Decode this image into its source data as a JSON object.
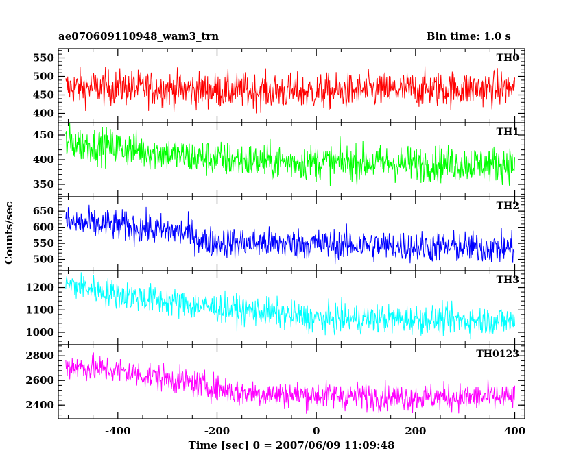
{
  "chart_data": {
    "type": "line",
    "title_left": "ae070609110948_wam3_trn",
    "title_right": "Bin time: 1.0 s",
    "xlabel": "Time [sec] 0 = 2007/06/09 11:09:48",
    "ylabel": "Counts/sec",
    "xlim": [
      -520,
      420
    ],
    "x_ticks": [
      -400,
      -200,
      0,
      200,
      400
    ],
    "x_data_range": [
      -505,
      400
    ],
    "bin_time_s": 1.0,
    "panels": [
      {
        "name": "TH0",
        "color": "#ff0000",
        "ylim": [
          375,
          575
        ],
        "y_ticks": [
          400,
          450,
          500,
          550
        ],
        "trend": [
          [
            -505,
            470
          ],
          [
            -400,
            470
          ],
          [
            -200,
            462
          ],
          [
            0,
            458
          ],
          [
            200,
            465
          ],
          [
            400,
            468
          ]
        ],
        "noise": 24
      },
      {
        "name": "TH1",
        "color": "#00ff00",
        "ylim": [
          325,
          475
        ],
        "y_ticks": [
          350,
          400,
          450
        ],
        "trend": [
          [
            -505,
            435
          ],
          [
            -400,
            425
          ],
          [
            -250,
            405
          ],
          [
            -100,
            395
          ],
          [
            0,
            395
          ],
          [
            200,
            392
          ],
          [
            400,
            392
          ]
        ],
        "noise": 18
      },
      {
        "name": "TH2",
        "color": "#0000ff",
        "ylim": [
          465,
          695
        ],
        "y_ticks": [
          500,
          550,
          600,
          650
        ],
        "trend": [
          [
            -505,
            615
          ],
          [
            -400,
            605
          ],
          [
            -250,
            580
          ],
          [
            -230,
            555
          ],
          [
            -100,
            550
          ],
          [
            0,
            548
          ],
          [
            200,
            540
          ],
          [
            400,
            535
          ]
        ],
        "noise": 24
      },
      {
        "name": "TH3",
        "color": "#00ffff",
        "ylim": [
          945,
          1275
        ],
        "y_ticks": [
          1000,
          1100,
          1200
        ],
        "trend": [
          [
            -505,
            1215
          ],
          [
            -400,
            1170
          ],
          [
            -250,
            1120
          ],
          [
            -100,
            1090
          ],
          [
            0,
            1060
          ],
          [
            200,
            1060
          ],
          [
            400,
            1050
          ]
        ],
        "noise": 32
      },
      {
        "name": "TH0123",
        "color": "#ff00ff",
        "ylim": [
          2290,
          2890
        ],
        "y_ticks": [
          2400,
          2600,
          2800
        ],
        "trend": [
          [
            -505,
            2720
          ],
          [
            -400,
            2680
          ],
          [
            -250,
            2580
          ],
          [
            -150,
            2500
          ],
          [
            0,
            2480
          ],
          [
            200,
            2465
          ],
          [
            400,
            2460
          ]
        ],
        "noise": 55
      }
    ]
  }
}
